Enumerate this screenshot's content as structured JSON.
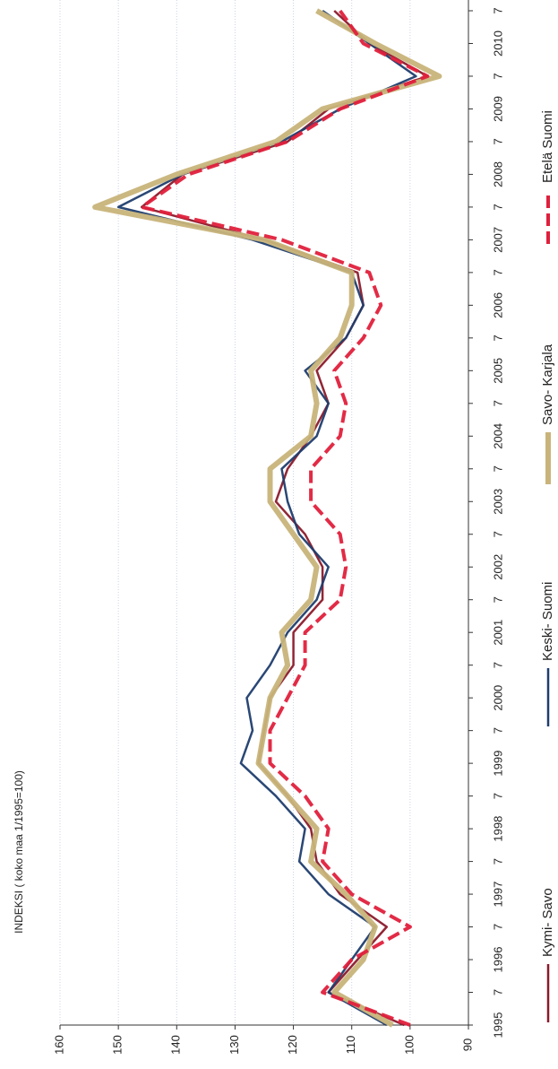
{
  "chart_data": {
    "type": "line",
    "ylabel": "INDEKSI ( koko maa 1/1995=100)",
    "categories": [
      "1995",
      "7",
      "1996",
      "7",
      "1997",
      "7",
      "1998",
      "7",
      "1999",
      "7",
      "2000",
      "7",
      "2001",
      "7",
      "2002",
      "7",
      "2003",
      "7",
      "2004",
      "7",
      "2005",
      "7",
      "2006",
      "7",
      "2007",
      "7",
      "2008",
      "7",
      "2009",
      "7",
      "2010",
      "7"
    ],
    "ylim": [
      90,
      160
    ],
    "yticks": [
      90,
      100,
      110,
      120,
      130,
      140,
      150,
      160
    ],
    "grid": true,
    "legend": "right",
    "series": [
      {
        "name": "Kymi- Savo",
        "color": "#8b1a2b",
        "line_style": "solid",
        "values": [
          101,
          114,
          109,
          104,
          112,
          116,
          117,
          121,
          126,
          125,
          124,
          120,
          120,
          115,
          115,
          118,
          123,
          121,
          117,
          114,
          116,
          111,
          108,
          109,
          125,
          146,
          139,
          121,
          114,
          97,
          107,
          113
        ]
      },
      {
        "name": "Keski- Suomi",
        "color": "#1f3d6e",
        "line_style": "solid",
        "values": [
          104,
          114,
          110,
          106,
          114,
          119,
          118,
          123,
          129,
          127,
          128,
          124,
          121,
          116,
          114,
          119,
          121,
          122,
          116,
          114,
          118,
          111,
          108,
          110,
          127,
          150,
          139,
          122,
          112,
          99,
          107,
          115
        ]
      },
      {
        "name": "Savo- Karjala",
        "color": "#c8b47a",
        "line_style": "thick",
        "values": [
          103,
          113,
          108,
          106,
          111,
          117,
          116,
          121,
          126,
          125,
          124,
          121,
          122,
          117,
          116,
          120,
          124,
          124,
          117,
          116,
          117,
          112,
          110,
          110,
          125,
          154,
          140,
          123,
          115,
          95,
          106,
          116
        ]
      },
      {
        "name": "Etelä Suomi",
        "color": "#e0203c",
        "line_style": "dashed",
        "values": [
          100,
          115,
          110,
          100,
          110,
          115,
          114,
          118,
          124,
          124,
          121,
          118,
          118,
          112,
          111,
          112,
          117,
          117,
          112,
          111,
          113,
          108,
          105,
          107,
          122,
          146,
          138,
          121,
          112,
          97,
          108,
          112
        ]
      }
    ]
  }
}
